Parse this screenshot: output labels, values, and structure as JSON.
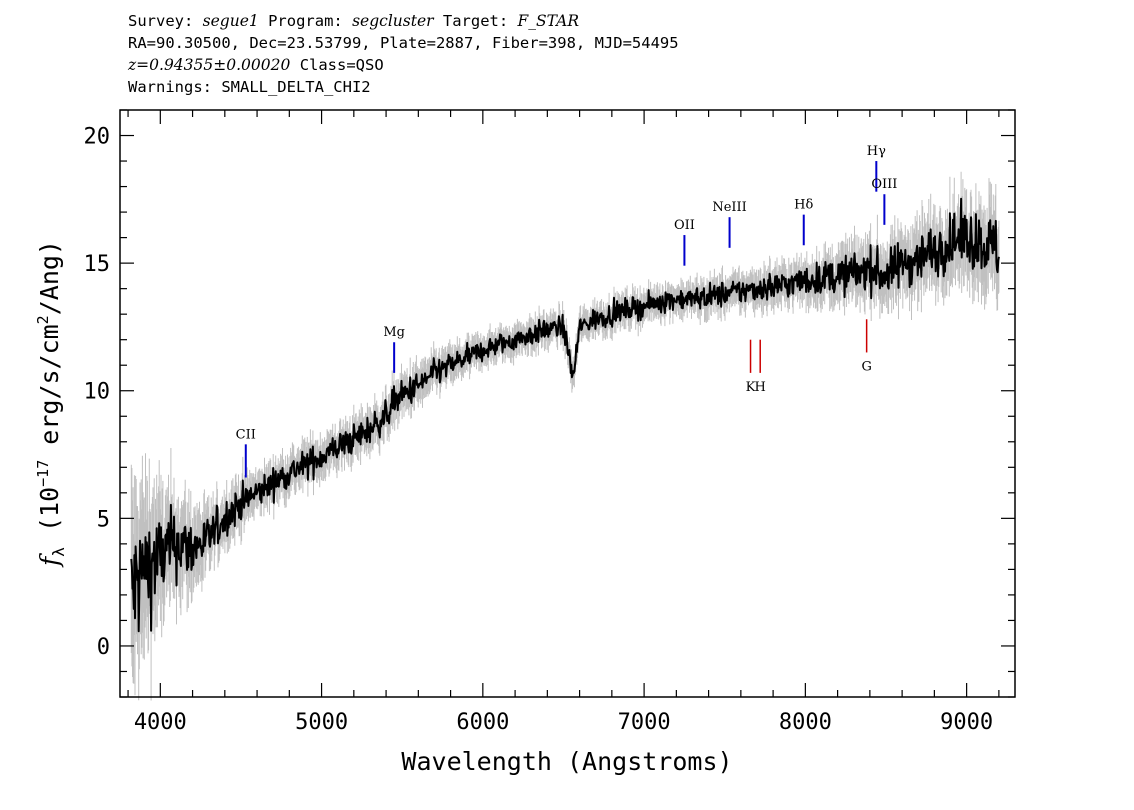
{
  "header": {
    "survey_label": "Survey:",
    "survey": "segue1",
    "program_label": "Program:",
    "program": "segcluster",
    "target_label": "Target:",
    "target": "F_STAR",
    "coords": "RA=90.30500, Dec=23.53799, Plate=2887, Fiber=398, MJD=54495",
    "redshift": "z=0.94355±0.00020",
    "class": "Class=QSO",
    "warnings": "Warnings: SMALL_DELTA_CHI2"
  },
  "chart_data": {
    "type": "line",
    "xlabel": "Wavelength (Angstroms)",
    "ylabel_prefix": "f",
    "ylabel_sub": "λ",
    "ylabel_rest": " (10",
    "ylabel_exp": "−17",
    "ylabel_unit": " erg/s/cm",
    "ylabel_unit_exp": "2",
    "ylabel_end": "/Ang)",
    "xlim": [
      3750,
      9300
    ],
    "ylim": [
      -2,
      21
    ],
    "xticks": [
      4000,
      5000,
      6000,
      7000,
      8000,
      9000
    ],
    "yticks": [
      0,
      5,
      10,
      15,
      20
    ],
    "series": [
      {
        "color": "#000000",
        "x": [
          3820,
          3900,
          4000,
          4100,
          4200,
          4300,
          4400,
          4500,
          4600,
          4700,
          4800,
          4900,
          5000,
          5100,
          5200,
          5300,
          5400,
          5450,
          5500,
          5600,
          5700,
          5800,
          5900,
          6000,
          6100,
          6200,
          6300,
          6400,
          6500,
          6560,
          6600,
          6700,
          6800,
          6900,
          7000,
          7100,
          7200,
          7300,
          7400,
          7500,
          7600,
          7700,
          7800,
          7900,
          8000,
          8100,
          8200,
          8300,
          8400,
          8500,
          8600,
          8700,
          8800,
          8900,
          9000,
          9100,
          9200
        ],
        "y": [
          2.0,
          3.0,
          3.5,
          4.0,
          3.8,
          4.2,
          5.0,
          5.6,
          6.0,
          6.4,
          6.8,
          7.1,
          7.4,
          7.8,
          8.1,
          8.5,
          9.0,
          9.6,
          9.8,
          10.2,
          10.7,
          11.0,
          11.3,
          11.6,
          11.8,
          12.0,
          12.2,
          12.4,
          12.5,
          10.5,
          12.5,
          12.8,
          13.0,
          13.2,
          13.3,
          13.5,
          13.6,
          13.6,
          13.7,
          13.8,
          13.9,
          14.0,
          14.1,
          14.2,
          14.3,
          14.4,
          14.5,
          14.6,
          14.8,
          14.5,
          15.0,
          15.2,
          15.5,
          15.8,
          16.0,
          15.8,
          15.5
        ],
        "noise_sigma": [
          2.0,
          1.6,
          1.2,
          1.0,
          0.8,
          0.6,
          0.5,
          0.5,
          0.4,
          0.4,
          0.4,
          0.4,
          0.4,
          0.4,
          0.4,
          0.4,
          0.4,
          0.4,
          0.4,
          0.4,
          0.35,
          0.35,
          0.3,
          0.3,
          0.3,
          0.3,
          0.3,
          0.3,
          0.3,
          0.3,
          0.3,
          0.3,
          0.3,
          0.3,
          0.3,
          0.3,
          0.3,
          0.3,
          0.35,
          0.35,
          0.35,
          0.35,
          0.4,
          0.4,
          0.4,
          0.45,
          0.5,
          0.55,
          0.6,
          0.6,
          0.65,
          0.7,
          0.7,
          0.75,
          0.8,
          0.85,
          0.9
        ]
      }
    ],
    "error_color": "#c0c0c0",
    "spectral_lines": [
      {
        "label": "CII",
        "x": 4530,
        "y_from": 6.6,
        "y_to": 7.9,
        "color": "#0000cc",
        "pos": "above"
      },
      {
        "label": "Mg",
        "x": 5450,
        "y_from": 10.7,
        "y_to": 11.9,
        "color": "#0000cc",
        "pos": "above"
      },
      {
        "label": "OII",
        "x": 7250,
        "y_from": 14.9,
        "y_to": 16.1,
        "color": "#0000cc",
        "pos": "above"
      },
      {
        "label": "NeIII",
        "x": 7530,
        "y_from": 15.6,
        "y_to": 16.8,
        "color": "#0000cc",
        "pos": "above"
      },
      {
        "label": "Hδ",
        "x": 7990,
        "y_from": 15.7,
        "y_to": 16.9,
        "color": "#0000cc",
        "pos": "above"
      },
      {
        "label": "Hγ",
        "x": 8440,
        "y_from": 17.8,
        "y_to": 19.0,
        "color": "#0000cc",
        "pos": "above"
      },
      {
        "label": "OIII",
        "x": 8490,
        "y_from": 16.5,
        "y_to": 17.7,
        "color": "#0000cc",
        "pos": "above"
      },
      {
        "label": "K",
        "x": 7660,
        "y_from": 10.7,
        "y_to": 12.0,
        "color": "#cc0000",
        "pos": "below"
      },
      {
        "label": "H",
        "x": 7720,
        "y_from": 10.7,
        "y_to": 12.0,
        "color": "#cc0000",
        "pos": "below"
      },
      {
        "label": "G",
        "x": 8380,
        "y_from": 11.5,
        "y_to": 12.8,
        "color": "#cc0000",
        "pos": "below"
      }
    ]
  }
}
